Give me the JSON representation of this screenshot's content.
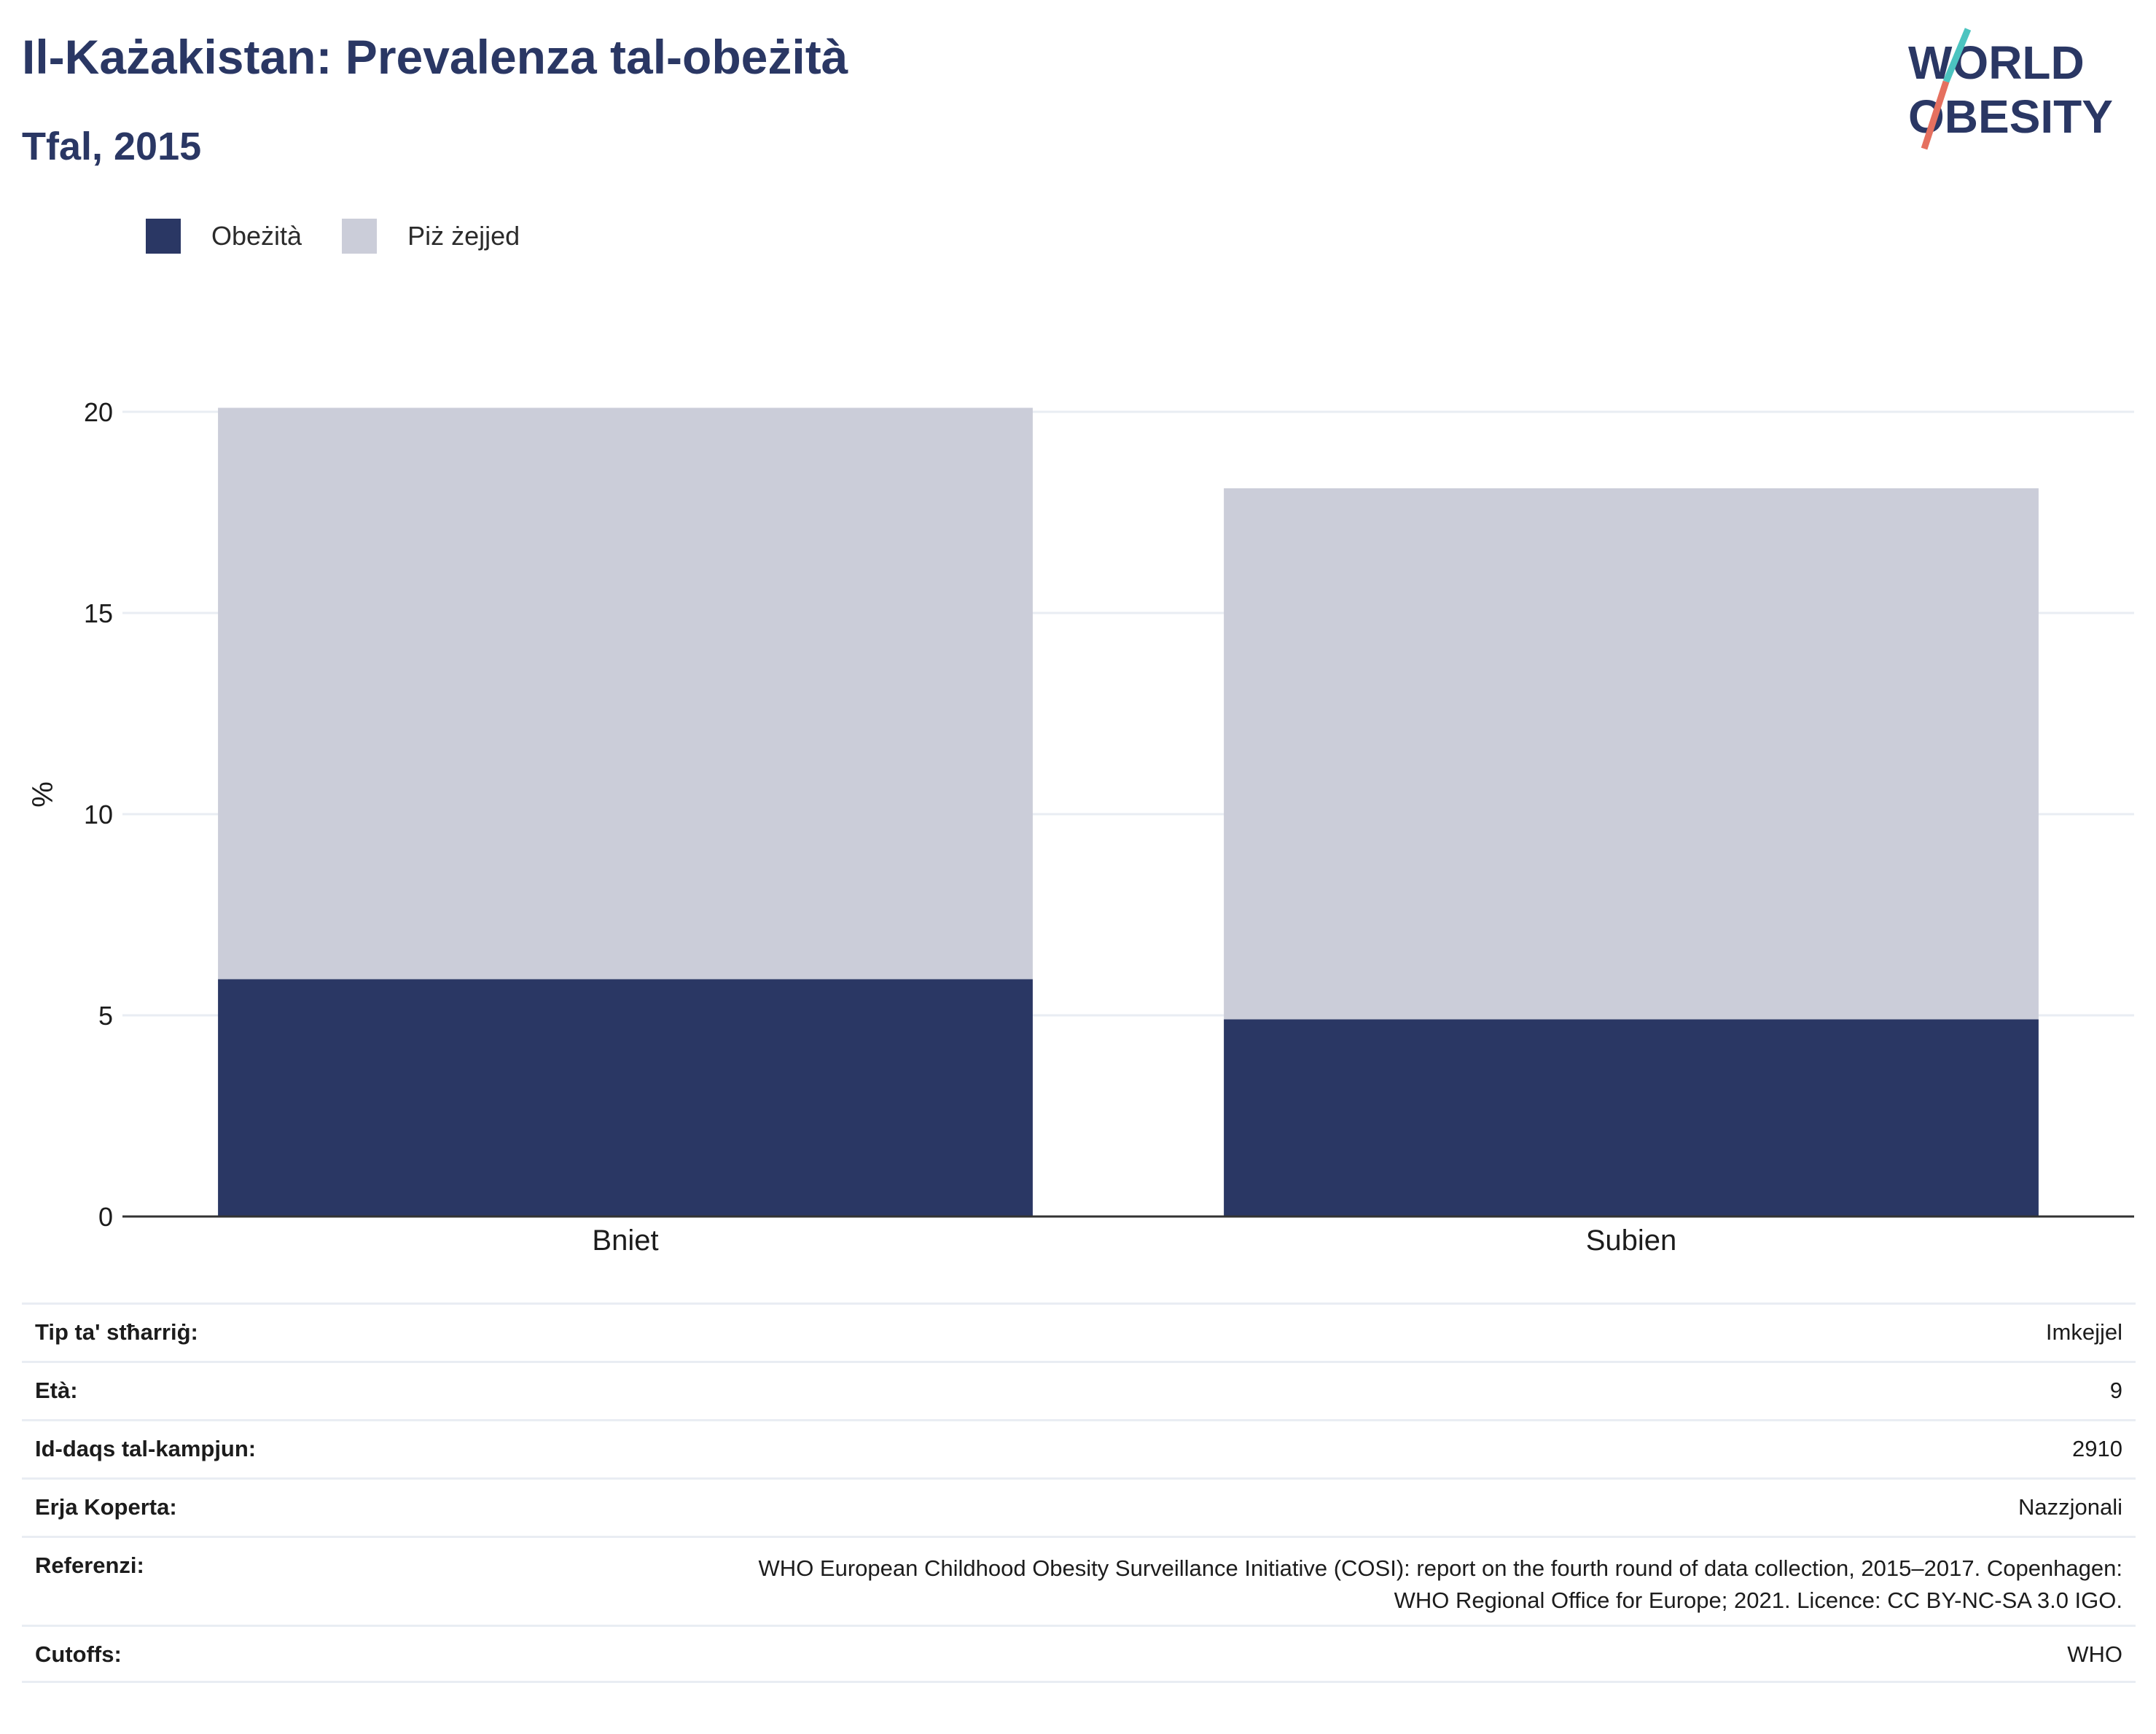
{
  "header": {
    "title": "Il-Każakistan: Prevalenza tal-obeżità",
    "subtitle": "Tfal, 2015"
  },
  "logo": {
    "line1": "WORLD",
    "line2": "OBESITY"
  },
  "colors": {
    "obesity": "#2a3764",
    "overweight": "#cbcdd9",
    "text": "#2a3764",
    "grid": "#e9edf3"
  },
  "legend": [
    {
      "label": "Obeżità",
      "color": "#2a3764"
    },
    {
      "label": "Piż żejjed",
      "color": "#cbcdd9"
    }
  ],
  "chart_data": {
    "type": "bar",
    "stacked": true,
    "categories": [
      "Bniet",
      "Subien"
    ],
    "series": [
      {
        "name": "Obeżità",
        "values": [
          5.9,
          4.9
        ]
      },
      {
        "name": "Piż żejjed",
        "values": [
          14.2,
          13.2
        ]
      }
    ],
    "ylabel": "%",
    "ylim": [
      0,
      20
    ],
    "yticks": [
      0,
      5,
      10,
      15,
      20
    ],
    "grid": true,
    "legend_position": "top-left"
  },
  "info": [
    {
      "label": "Tip ta' stħarriġ:",
      "value": "Imkejjel"
    },
    {
      "label": "Età:",
      "value": "9"
    },
    {
      "label": "Id-daqs tal-kampjun:",
      "value": "2910"
    },
    {
      "label": "Erja Koperta:",
      "value": "Nazzjonali"
    },
    {
      "label": "Referenzi:",
      "value": "WHO European Childhood Obesity Surveillance Initiative (COSI): report on the fourth round of data collection, 2015–2017. Copenhagen:\nWHO Regional Office for Europe; 2021. Licence: CC BY-NC-SA 3.0 IGO."
    },
    {
      "label": "Cutoffs:",
      "value": "WHO"
    }
  ]
}
